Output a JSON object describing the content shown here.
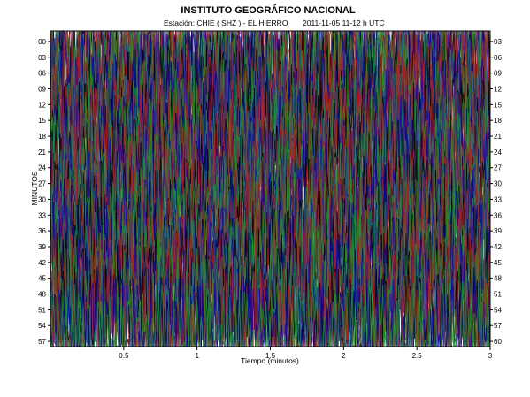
{
  "chart_data": {
    "type": "line",
    "title": "INSTITUTO GEOGRÁFICO NACIONAL",
    "subtitle": {
      "station": "Estación:  CHIE ( SHZ ) - EL HIERRO",
      "datetime": "2011-11-05  11-12 h UTC"
    },
    "xlabel": "Tiempo (minutos)",
    "ylabel": "MINUTOS",
    "xlim": [
      0,
      3
    ],
    "x_ticks": [
      "0.5",
      "1",
      "1.5",
      "2",
      "2.5",
      "3"
    ],
    "y_ticks_left": [
      "00",
      "03",
      "06",
      "09",
      "12",
      "15",
      "18",
      "21",
      "24",
      "27",
      "30",
      "33",
      "36",
      "39",
      "42",
      "45",
      "48",
      "51",
      "54",
      "57"
    ],
    "y_ticks_right": [
      "03",
      "06",
      "09",
      "12",
      "15",
      "18",
      "21",
      "24",
      "27",
      "30",
      "33",
      "36",
      "39",
      "42",
      "45",
      "48",
      "51",
      "54",
      "57",
      "60"
    ],
    "trace_colors": [
      "#000000",
      "#d01010",
      "#0000c8",
      "#10a010",
      "#9a2a2a",
      "#1a8a4a",
      "#2a2a9a"
    ],
    "trace_count": 60,
    "grid": false,
    "legend": "none"
  }
}
